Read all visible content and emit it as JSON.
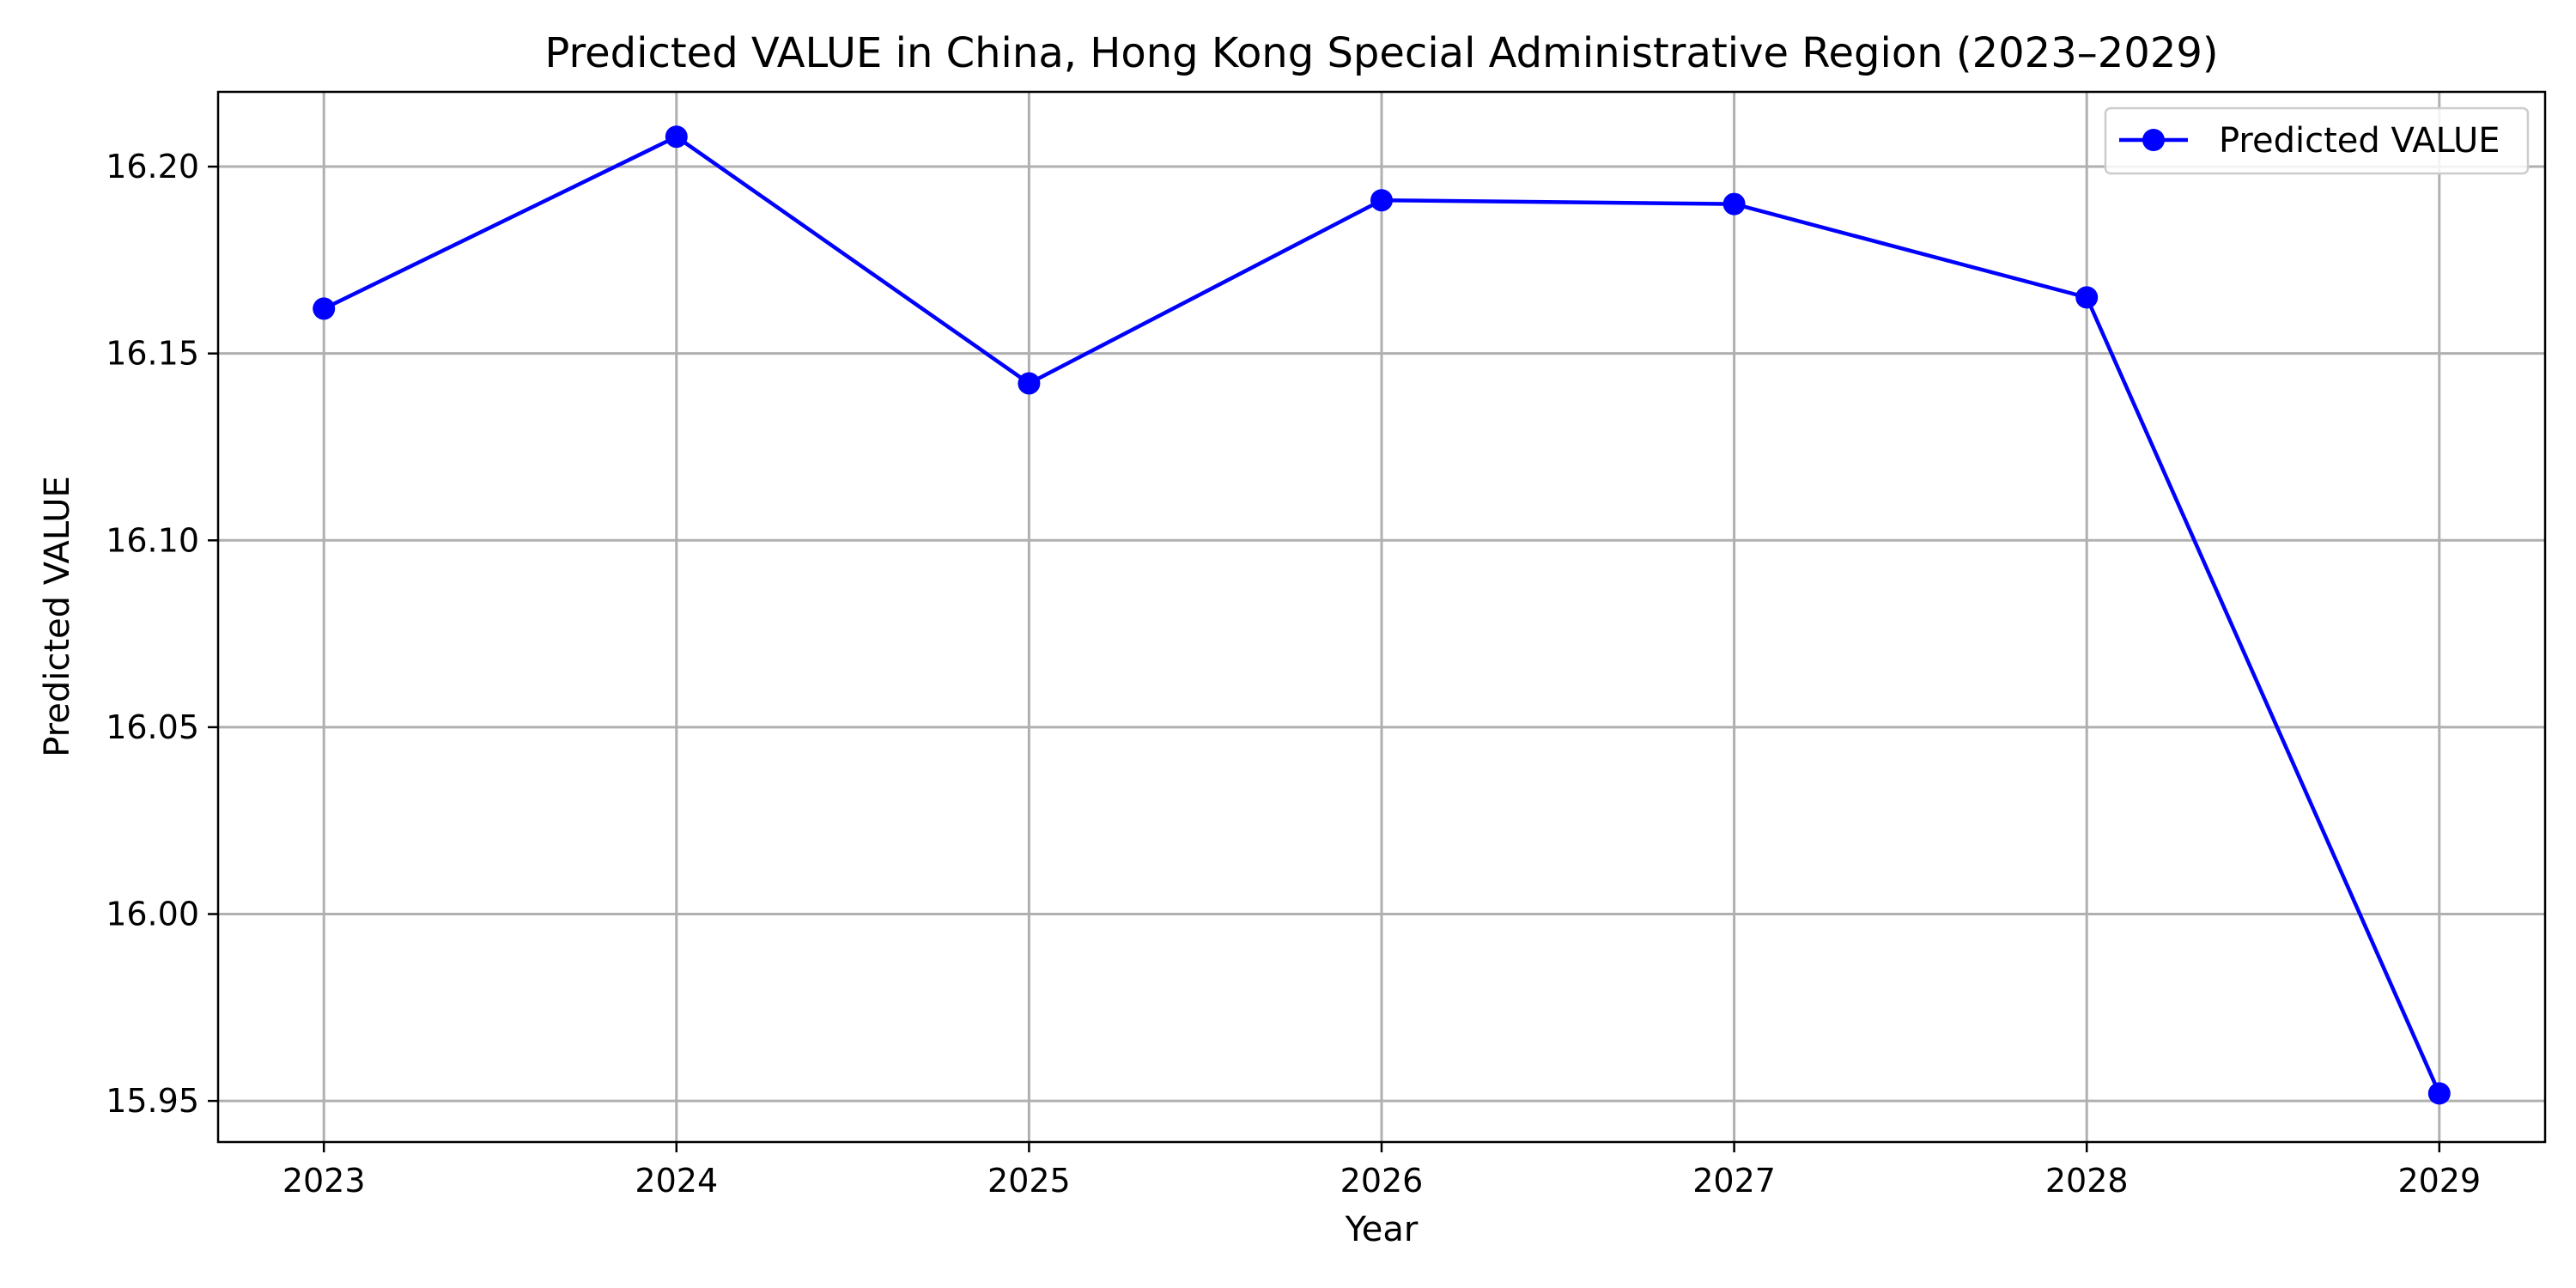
{
  "chart_data": {
    "type": "line",
    "title": "Predicted VALUE in China, Hong Kong Special Administrative Region (2023–2029)",
    "xlabel": "Year",
    "ylabel": "Predicted VALUE",
    "x": [
      2023,
      2024,
      2025,
      2026,
      2027,
      2028,
      2029
    ],
    "x_tick_labels": [
      "2023",
      "2024",
      "2025",
      "2026",
      "2027",
      "2028",
      "2029"
    ],
    "y_ticks": [
      15.95,
      16.0,
      16.05,
      16.1,
      16.15,
      16.2
    ],
    "y_tick_labels": [
      "15.95",
      "16.00",
      "16.05",
      "16.10",
      "16.15",
      "16.20"
    ],
    "xlim": [
      2022.7,
      2029.3
    ],
    "ylim": [
      15.939,
      16.22
    ],
    "grid": true,
    "legend_position": "top-right",
    "series": [
      {
        "name": "Predicted VALUE",
        "color": "#0000ff",
        "marker": "circle",
        "values": [
          16.162,
          16.208,
          16.142,
          16.191,
          16.19,
          16.165,
          15.952
        ]
      }
    ]
  }
}
